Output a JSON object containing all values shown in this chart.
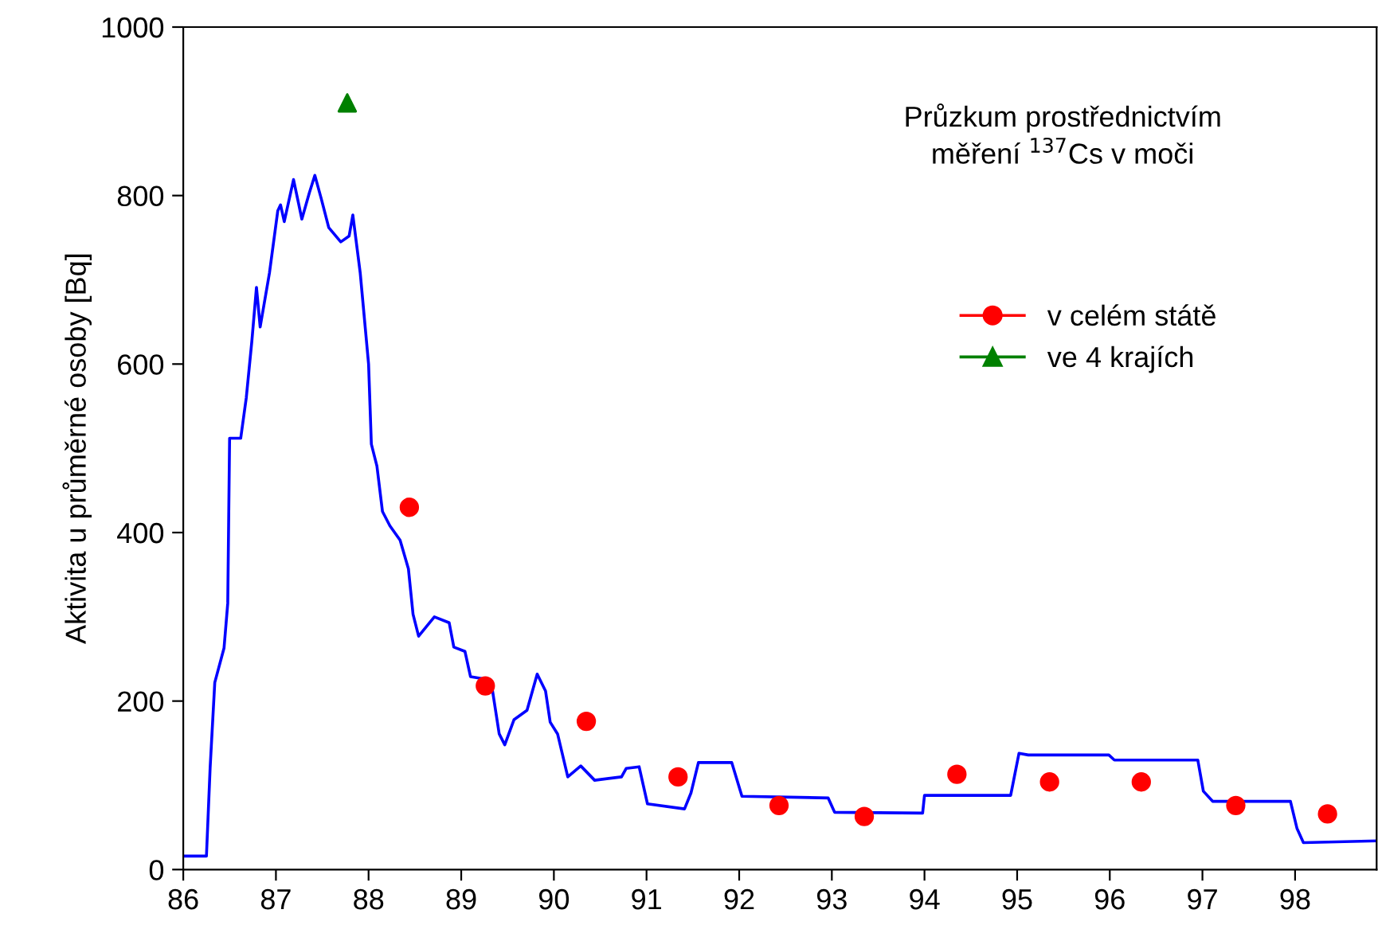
{
  "chart_data": {
    "type": "line",
    "title": "Průzkum prostřednictvím\nměření $^{137}$Cs v moči",
    "ylabel": "Aktivita u průměrné osoby [Bq]",
    "xlim": [
      86,
      98.88
    ],
    "xticks": [
      86,
      87,
      88,
      89,
      90,
      91,
      92,
      93,
      94,
      95,
      96,
      97,
      98
    ],
    "ylim": [
      0,
      1000
    ],
    "yticks": [
      0,
      200,
      400,
      600,
      800,
      1000
    ],
    "grid": false,
    "legend": "right",
    "series": [
      {
        "color": "#0000ff",
        "marker": "none",
        "line_style": "solid",
        "x": [
          86,
          86.25,
          86.29,
          86.34,
          86.44,
          86.48,
          86.5,
          86.62,
          86.68,
          86.74,
          86.79,
          86.83,
          86.93,
          87.02,
          87.05,
          87.09,
          87.19,
          87.28,
          87.36,
          87.42,
          87.49,
          87.57,
          87.7,
          87.79,
          87.83,
          87.91,
          88.0,
          88.03,
          88.09,
          88.15,
          88.23,
          88.34,
          88.43,
          88.48,
          88.54,
          88.71,
          88.87,
          88.92,
          89.04,
          89.1,
          89.32,
          89.41,
          89.47,
          89.57,
          89.71,
          89.82,
          89.91,
          89.96,
          90.04,
          90.15,
          90.29,
          90.44,
          90.73,
          90.78,
          90.92,
          91.01,
          91.41,
          91.48,
          91.56,
          91.92,
          92.03,
          92.96,
          93.03,
          93.98,
          94.0,
          94.93,
          95.02,
          95.12,
          95.99,
          96.05,
          96.95,
          97.01,
          97.11,
          97.95,
          98.02,
          98.09,
          98.88
        ],
        "values": [
          16,
          16,
          121,
          222,
          263,
          316,
          512,
          512,
          560,
          627,
          691,
          644,
          708,
          782,
          789,
          769,
          819,
          772,
          803,
          824,
          796,
          762,
          745,
          752,
          777,
          708,
          600,
          505,
          479,
          425,
          408,
          391,
          357,
          303,
          277,
          300,
          293,
          264,
          259,
          229,
          225,
          161,
          148,
          178,
          189,
          232,
          212,
          175,
          161,
          110,
          123,
          106,
          110,
          120,
          122,
          78,
          72,
          91,
          127,
          127,
          87,
          85,
          68,
          67,
          88,
          88,
          138,
          136,
          136,
          130,
          130,
          93,
          81,
          81,
          49,
          32,
          34
        ]
      },
      {
        "type": "scatter",
        "name": "v celém státě",
        "color": "#ff0000",
        "marker": "circle",
        "x": [
          88.44,
          89.26,
          90.35,
          91.34,
          92.43,
          93.35,
          94.35,
          95.35,
          96.34,
          97.36,
          98.35
        ],
        "values": [
          430,
          218,
          176,
          110,
          76,
          63,
          113,
          104,
          104,
          76,
          66
        ]
      },
      {
        "type": "scatter",
        "name": "ve 4 krajích",
        "color": "#008000",
        "marker": "triangle",
        "x": [
          87.77
        ],
        "values": [
          910
        ]
      }
    ]
  }
}
